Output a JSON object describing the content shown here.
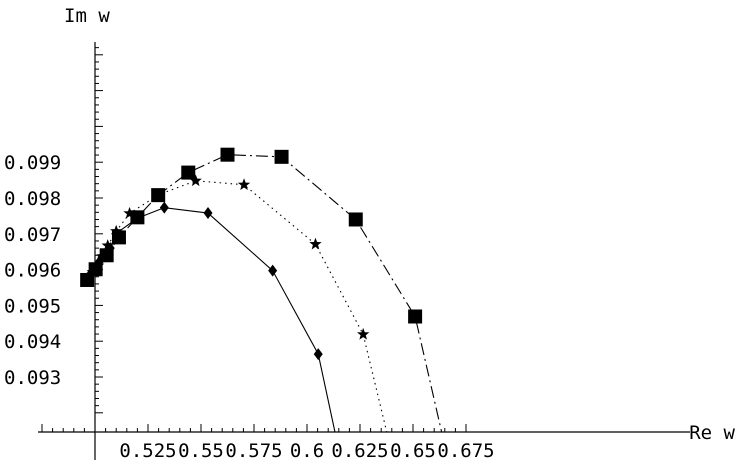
{
  "chart_data": {
    "type": "line",
    "title": "",
    "xlabel": "Re w",
    "ylabel": "Im w",
    "xlim": [
      0.498,
      0.678
    ],
    "ylim": [
      0.0921,
      0.0993
    ],
    "x_ticks": [
      0.525,
      0.55,
      0.575,
      0.6,
      0.625,
      0.65,
      0.675
    ],
    "x_tick_labels": [
      "0.525",
      "0.55",
      "0.575",
      "0.6",
      "0.625",
      "0.65",
      "0.675"
    ],
    "y_ticks": [
      0.093,
      0.094,
      0.095,
      0.096,
      0.097,
      0.098,
      0.099
    ],
    "y_tick_labels": [
      "0.093",
      "0.094",
      "0.095",
      "0.096",
      "0.097",
      "0.098",
      "0.099"
    ],
    "grid": false,
    "series": [
      {
        "marker": "diamond",
        "line_style": "solid",
        "x": [
          0.4963,
          0.4985,
          0.5003,
          0.5019,
          0.5033,
          0.5072,
          0.5098,
          0.5198,
          0.5327,
          0.5533,
          0.5838,
          0.6053,
          0.6185
        ],
        "y": [
          0.09575,
          0.09593,
          0.09604,
          0.09621,
          0.09635,
          0.0966,
          0.097,
          0.09743,
          0.09773,
          0.09758,
          0.09597,
          0.09364,
          0.09
        ]
      },
      {
        "marker": "star",
        "line_style": "dotted",
        "x": [
          0.4963,
          0.499,
          0.5015,
          0.5035,
          0.506,
          0.51,
          0.5163,
          0.5303,
          0.5475,
          0.5703,
          0.604,
          0.6265,
          0.6395
        ],
        "y": [
          0.09576,
          0.09593,
          0.09611,
          0.09637,
          0.09667,
          0.09707,
          0.09757,
          0.0981,
          0.09848,
          0.09837,
          0.09671,
          0.09419,
          0.091
        ]
      },
      {
        "marker": "square",
        "line_style": "dashdot",
        "x": [
          0.4963,
          0.5003,
          0.5055,
          0.5113,
          0.52,
          0.5298,
          0.544,
          0.5625,
          0.588,
          0.623,
          0.651,
          0.6653
        ],
        "y": [
          0.09571,
          0.09601,
          0.0964,
          0.0969,
          0.09746,
          0.09808,
          0.09871,
          0.09921,
          0.09915,
          0.0974,
          0.09469,
          0.091
        ]
      }
    ]
  }
}
